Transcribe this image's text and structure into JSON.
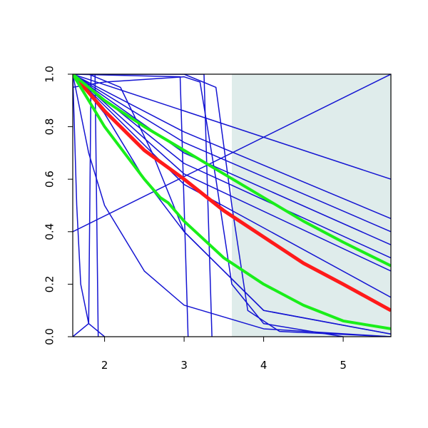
{
  "chart_data": {
    "type": "line",
    "xlim": [
      1.6,
      5.6
    ],
    "ylim": [
      0,
      1
    ],
    "xticks": [
      2,
      3,
      4,
      5
    ],
    "yticks": [
      {
        "value": 0,
        "label": "0.0"
      },
      0.2,
      0.4,
      0.6,
      0.8,
      {
        "value": 1,
        "label": "1.0"
      }
    ],
    "shade": {
      "x": [
        3.6,
        5.6
      ],
      "color": "#dfeceb"
    },
    "series": [
      {
        "color": "#1414d2",
        "width": 1.5,
        "x": [
          1.6,
          3.0,
          5.6
        ],
        "values": [
          1,
          0.86,
          0.6
        ]
      },
      {
        "color": "#1414d2",
        "width": 1.5,
        "x": [
          1.6,
          3.0,
          5.6
        ],
        "values": [
          1,
          0.78,
          0.45
        ]
      },
      {
        "color": "#1414d2",
        "width": 1.5,
        "x": [
          1.6,
          3.0,
          5.6
        ],
        "values": [
          1,
          0.74,
          0.4
        ]
      },
      {
        "color": "#1414d2",
        "width": 1.5,
        "x": [
          1.6,
          3.0,
          5.6
        ],
        "values": [
          1,
          0.7,
          0.35
        ]
      },
      {
        "color": "#1414d2",
        "width": 1.5,
        "x": [
          1.6,
          3.0,
          5.6
        ],
        "values": [
          1,
          0.66,
          0.3
        ]
      },
      {
        "color": "#1414d2",
        "width": 1.5,
        "x": [
          1.6,
          3.0,
          5.6
        ],
        "values": [
          1,
          0.62,
          0.25
        ]
      },
      {
        "color": "#1414d2",
        "width": 1.5,
        "x": [
          1.6,
          3.0,
          5.6
        ],
        "values": [
          1,
          0.58,
          0.15
        ]
      },
      {
        "color": "#1414d2",
        "width": 1.5,
        "x": [
          1.6,
          5.6
        ],
        "values": [
          0.4,
          1
        ]
      },
      {
        "color": "#1414d2",
        "width": 1.5,
        "x": [
          1.6,
          3.25,
          3.3,
          3.35
        ],
        "values": [
          1,
          1,
          0.5,
          0
        ]
      },
      {
        "color": "#1414d2",
        "width": 1.5,
        "x": [
          1.6,
          2.95,
          3.0,
          3.05
        ],
        "values": [
          1,
          0.99,
          0.5,
          0
        ]
      },
      {
        "color": "#1414d2",
        "width": 1.5,
        "x": [
          1.6,
          3.0,
          3.4,
          3.6,
          3.8,
          4.2,
          5.6
        ],
        "values": [
          1,
          1,
          0.95,
          0.5,
          0.1,
          0.02,
          0
        ]
      },
      {
        "color": "#1414d2",
        "width": 1.5,
        "x": [
          1.6,
          1.65,
          1.7,
          1.8,
          2.0
        ],
        "values": [
          1,
          0.5,
          0.2,
          0.05,
          0
        ]
      },
      {
        "color": "#1414d2",
        "width": 1.5,
        "x": [
          1.6,
          1.8,
          2.0,
          2.5,
          3.0,
          4.0,
          5.6
        ],
        "values": [
          1,
          0.7,
          0.5,
          0.25,
          0.12,
          0.03,
          0
        ]
      },
      {
        "color": "#1414d2",
        "width": 1.5,
        "x": [
          1.6,
          2.0,
          2.5,
          3.0,
          3.5,
          4.0,
          5.6
        ],
        "values": [
          1,
          0.85,
          0.6,
          0.4,
          0.25,
          0.1,
          0.01
        ]
      },
      {
        "color": "#1414d2",
        "width": 1.5,
        "x": [
          1.6,
          1.8,
          1.83,
          1.88,
          1.92
        ],
        "values": [
          0,
          0.05,
          1,
          1,
          0
        ]
      },
      {
        "color": "#1414d2",
        "width": 1.5,
        "x": [
          1.6,
          2.0,
          2.5,
          3.0,
          3.2,
          3.4,
          3.6,
          4.0,
          5.0
        ],
        "values": [
          0.95,
          0.97,
          0.98,
          0.99,
          0.97,
          0.6,
          0.2,
          0.05,
          0
        ]
      },
      {
        "color": "#1414d2",
        "width": 1.5,
        "x": [
          1.6,
          1.8,
          2.2,
          2.6,
          3.0,
          4.0,
          5.6
        ],
        "values": [
          1,
          1,
          0.95,
          0.7,
          0.4,
          0.1,
          0.01
        ]
      },
      {
        "color": "#ff1a1a",
        "width": 5,
        "x": [
          1.6,
          2.0,
          2.5,
          3.0,
          3.5,
          4.0,
          4.5,
          5.0,
          5.6
        ],
        "values": [
          1,
          0.86,
          0.71,
          0.6,
          0.48,
          0.38,
          0.28,
          0.2,
          0.1
        ]
      },
      {
        "color": "#1aee1a",
        "width": 4,
        "x": [
          1.6,
          2.0,
          2.5,
          3.0,
          3.5,
          4.0,
          4.5,
          5.0,
          5.6
        ],
        "values": [
          1,
          0.9,
          0.8,
          0.71,
          0.62,
          0.53,
          0.44,
          0.36,
          0.27
        ]
      },
      {
        "color": "#1aee1a",
        "width": 4,
        "x": [
          1.6,
          2.0,
          2.5,
          2.7,
          2.8,
          3.0,
          3.5,
          4.0,
          4.5,
          5.0,
          5.6
        ],
        "values": [
          1,
          0.8,
          0.6,
          0.53,
          0.51,
          0.44,
          0.3,
          0.2,
          0.12,
          0.06,
          0.03
        ]
      }
    ]
  }
}
